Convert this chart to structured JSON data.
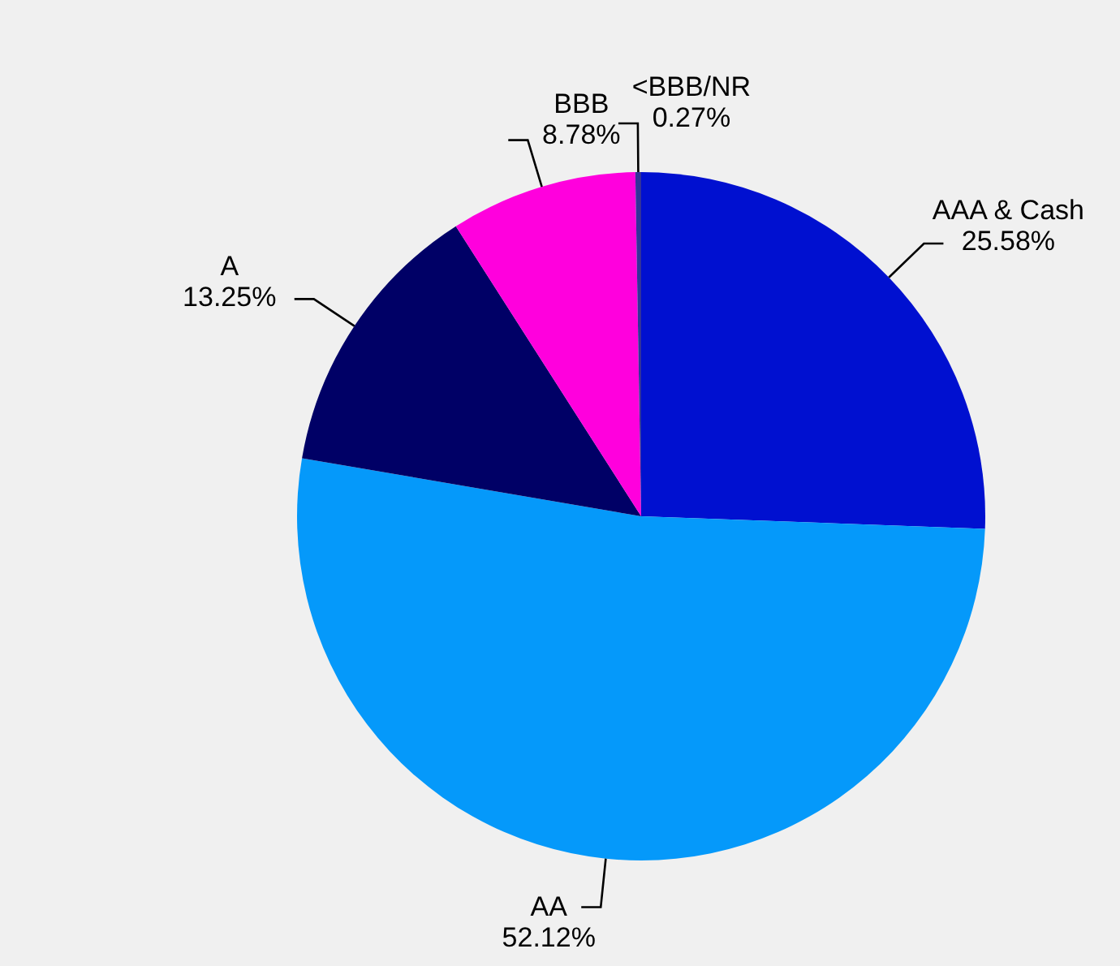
{
  "chart_data": {
    "type": "pie",
    "categories": [
      "AAA & Cash",
      "AA",
      "A",
      "BBB",
      "<BBB/NR"
    ],
    "values": [
      25.58,
      52.12,
      13.25,
      8.78,
      0.27
    ],
    "value_labels": [
      "25.58%",
      "52.12%",
      "13.25%",
      "8.78%",
      "0.27%"
    ],
    "colors": [
      "#0010d0",
      "#0599fa",
      "#000066",
      "#ff00dd",
      "#333399"
    ],
    "legend": false
  }
}
